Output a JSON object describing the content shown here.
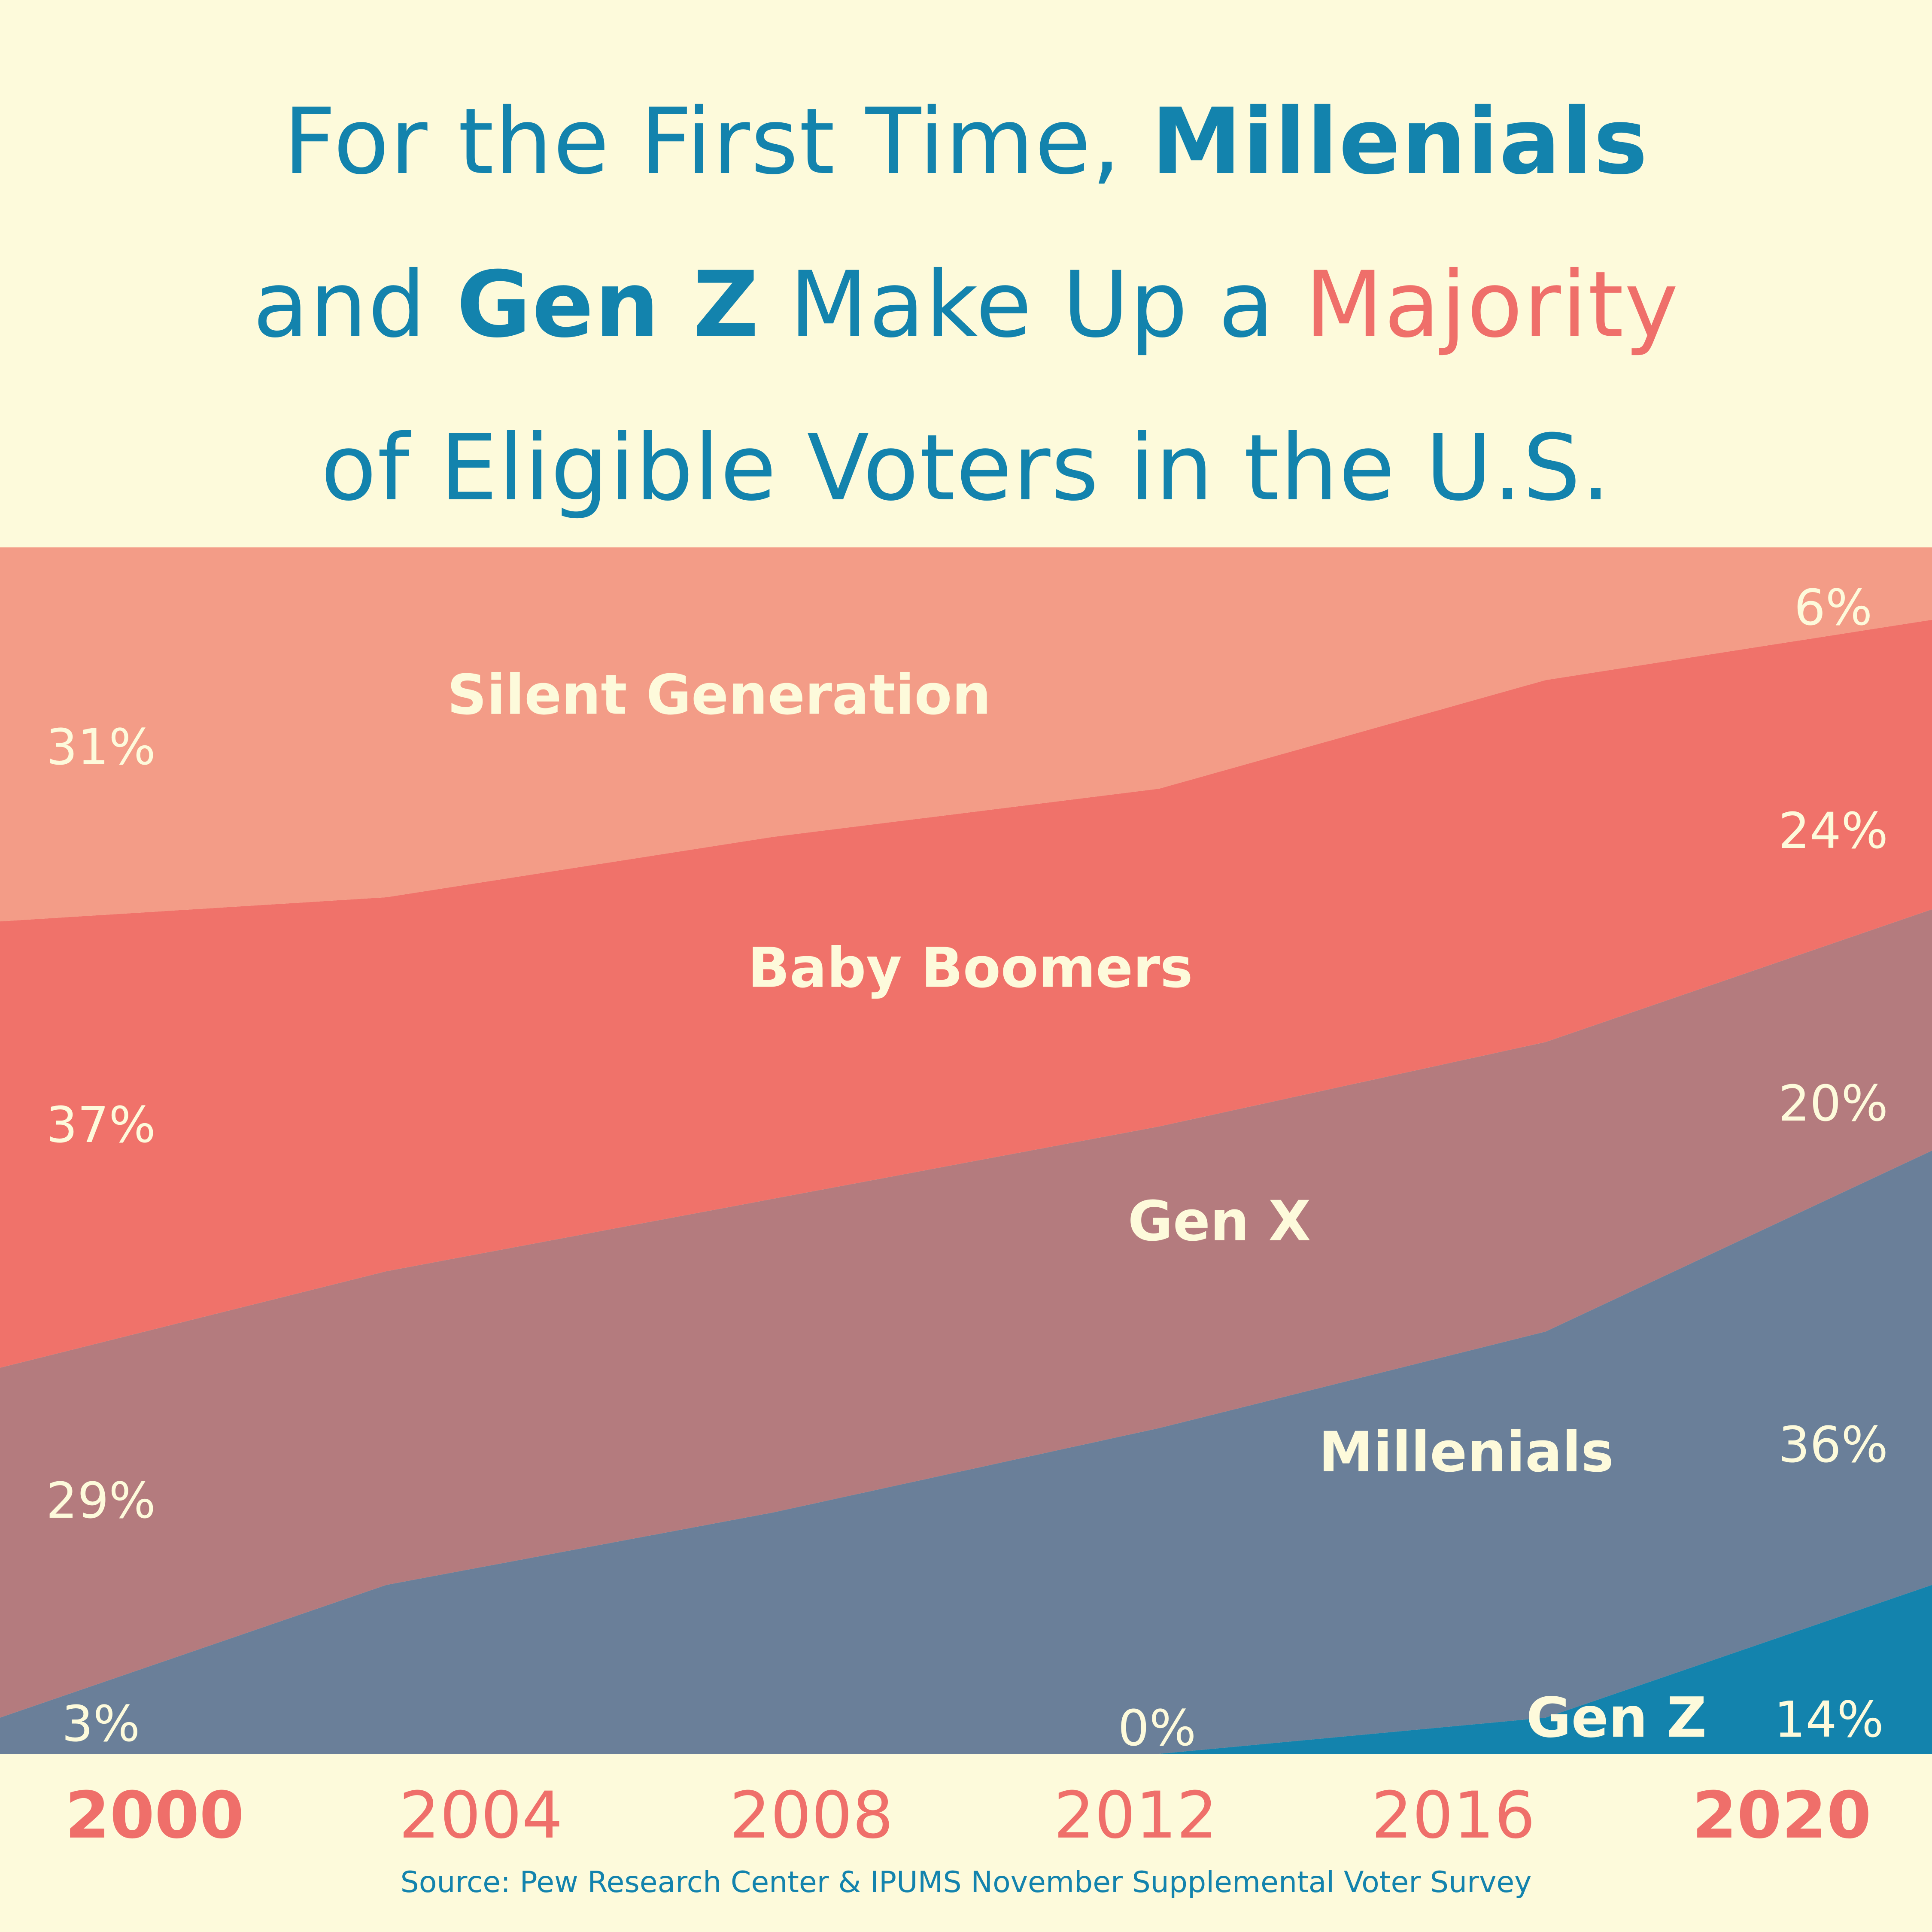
{
  "title": {
    "line1_pre": "For the First Time, ",
    "line1_bold": "Millenials",
    "line2_pre": "and ",
    "line2_bold": "Gen Z",
    "line2_mid": " Make Up a ",
    "line2_hl": "Majority",
    "line3": "of Eligible Voters in the U.S."
  },
  "source": "Source: Pew Research Center & IPUMS November Supplemental Voter Survey",
  "colors": {
    "background": "#fdfadb",
    "title": "#1383ad",
    "highlight": "#ef6f6a",
    "axis_labels": "#ef6f6a",
    "silent": "#f39c87",
    "boomers": "#f0726a",
    "genx": "#b47b7e",
    "millenials": "#6a7f99",
    "genz": "#1383ad",
    "label_text": "#fdfadb"
  },
  "chart_data": {
    "type": "area",
    "stacked": true,
    "x": [
      "2000",
      "2004",
      "2008",
      "2012",
      "2016",
      "2020"
    ],
    "bold_x": [
      "2000",
      "2020"
    ],
    "ylim": [
      0,
      100
    ],
    "series": [
      {
        "name": "Gen Z",
        "key": "genz",
        "values": [
          0,
          0,
          0,
          0,
          3,
          14
        ]
      },
      {
        "name": "Millenials",
        "key": "millenials",
        "values": [
          3,
          14,
          20,
          27,
          32,
          36
        ]
      },
      {
        "name": "Gen X",
        "key": "genx",
        "values": [
          29,
          26,
          26,
          25,
          24,
          20
        ]
      },
      {
        "name": "Baby Boomers",
        "key": "boomers",
        "values": [
          37,
          31,
          30,
          28,
          30,
          24
        ]
      },
      {
        "name": "Silent Generation",
        "key": "silent",
        "values": [
          31,
          29,
          24,
          20,
          11,
          6
        ]
      }
    ],
    "data_labels": [
      {
        "text": "31%",
        "series": "Silent Generation",
        "year": "2000"
      },
      {
        "text": "37%",
        "series": "Baby Boomers",
        "year": "2000"
      },
      {
        "text": "29%",
        "series": "Gen X",
        "year": "2000"
      },
      {
        "text": "3%",
        "series": "Millenials",
        "year": "2000"
      },
      {
        "text": "0%",
        "series": "Gen Z",
        "year": "2012"
      },
      {
        "text": "6%",
        "series": "Silent Generation",
        "year": "2020"
      },
      {
        "text": "24%",
        "series": "Baby Boomers",
        "year": "2020"
      },
      {
        "text": "20%",
        "series": "Gen X",
        "year": "2020"
      },
      {
        "text": "36%",
        "series": "Millenials",
        "year": "2020"
      },
      {
        "text": "14%",
        "series": "Gen Z",
        "year": "2020"
      }
    ]
  }
}
